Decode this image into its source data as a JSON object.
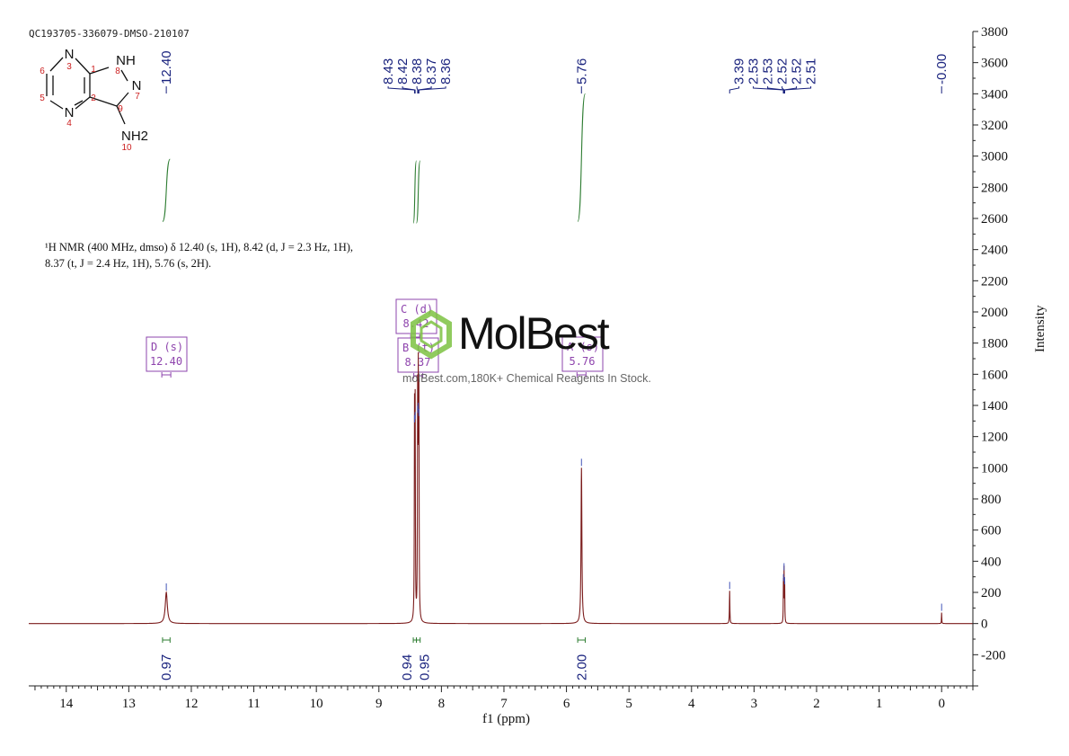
{
  "sample_id": "QC193705-336079-DMSO-210107",
  "nmr_summary": {
    "line1": "¹H NMR (400 MHz, dmso) δ 12.40 (s, 1H), 8.42 (d, J = 2.3 Hz, 1H),",
    "line2": "8.37 (t, J = 2.4 Hz, 1H), 5.76 (s, 2H)."
  },
  "watermark": {
    "logo": "MolBest",
    "subtitle": "molBest.com,180K+ Chemical Reagents In Stock."
  },
  "structure_labels": {
    "atoms": [
      "N",
      "NH",
      "N",
      "N",
      "NH2"
    ],
    "numbers": [
      "1",
      "2",
      "3",
      "4",
      "5",
      "6",
      "7",
      "8",
      "9",
      "10"
    ]
  },
  "colors": {
    "spectrum": "#7b1c1c",
    "peak_label": "#1a237e",
    "integral": "#2e7d32",
    "multiplet_box": "#8e44ad",
    "axis": "#222222"
  },
  "chart_data": {
    "type": "line",
    "xlabel": "f1 (ppm)",
    "ylabel": "Intensity",
    "xlim": [
      14.6,
      -0.5
    ],
    "ylim": [
      -400,
      3800
    ],
    "x_ticks": [
      14,
      13,
      12,
      11,
      10,
      9,
      8,
      7,
      6,
      5,
      4,
      3,
      2,
      1,
      0
    ],
    "y_ticks": [
      -200,
      0,
      200,
      400,
      600,
      800,
      1000,
      1200,
      1400,
      1600,
      1800,
      2000,
      2200,
      2400,
      2600,
      2800,
      3000,
      3200,
      3400,
      3600,
      3800
    ],
    "peaks": [
      {
        "ppm": 12.4,
        "height": 200,
        "width": 0.02
      },
      {
        "ppm": 8.43,
        "height": 1280,
        "width": 0.004
      },
      {
        "ppm": 8.42,
        "height": 1300,
        "width": 0.004
      },
      {
        "ppm": 8.38,
        "height": 1340,
        "width": 0.004
      },
      {
        "ppm": 8.37,
        "height": 1360,
        "width": 0.004
      },
      {
        "ppm": 8.36,
        "height": 1320,
        "width": 0.004
      },
      {
        "ppm": 5.76,
        "height": 1000,
        "width": 0.008
      },
      {
        "ppm": 3.39,
        "height": 210,
        "width": 0.004
      },
      {
        "ppm": 2.53,
        "height": 260,
        "width": 0.003
      },
      {
        "ppm": 2.52,
        "height": 330,
        "width": 0.003
      },
      {
        "ppm": 2.51,
        "height": 240,
        "width": 0.003
      },
      {
        "ppm": 0.0,
        "height": 70,
        "width": 0.003
      }
    ],
    "peak_label_groups": [
      {
        "labels": [
          "12.40"
        ],
        "positions": [
          12.4
        ]
      },
      {
        "labels": [
          "8.43",
          "8.42",
          "8.38",
          "8.37",
          "8.36"
        ],
        "positions": [
          8.43,
          8.42,
          8.38,
          8.37,
          8.36
        ]
      },
      {
        "labels": [
          "5.76"
        ],
        "positions": [
          5.76
        ]
      },
      {
        "labels": [
          "3.39",
          "2.53",
          "2.53",
          "2.52",
          "2.52",
          "2.51"
        ],
        "positions": [
          3.39,
          2.53,
          2.53,
          2.52,
          2.52,
          2.51
        ]
      },
      {
        "labels": [
          "-0.00"
        ],
        "positions": [
          0.0
        ]
      }
    ],
    "multiplets": [
      {
        "letter": "D (s)",
        "shift": "12.40",
        "ppm": 12.4
      },
      {
        "letter": "C (d)",
        "shift": "8.42",
        "ppm": 8.42
      },
      {
        "letter": "B (t)",
        "shift": "8.37",
        "ppm": 8.37
      },
      {
        "letter": "A (s)",
        "shift": "5.76",
        "ppm": 5.76
      }
    ],
    "integrals": [
      {
        "value": "0.97",
        "from": 12.46,
        "to": 12.34,
        "ppm": 12.4,
        "curve_low": 2580,
        "curve_high": 2980
      },
      {
        "value": "0.94",
        "from": 8.45,
        "to": 8.4,
        "ppm": 8.42,
        "curve_low": 2570,
        "curve_high": 2970
      },
      {
        "value": "0.95",
        "from": 8.4,
        "to": 8.34,
        "ppm": 8.37,
        "curve_low": 2570,
        "curve_high": 2970
      },
      {
        "value": "2.00",
        "from": 5.82,
        "to": 5.7,
        "ppm": 5.76,
        "curve_low": 2580,
        "curve_high": 3400
      }
    ]
  }
}
